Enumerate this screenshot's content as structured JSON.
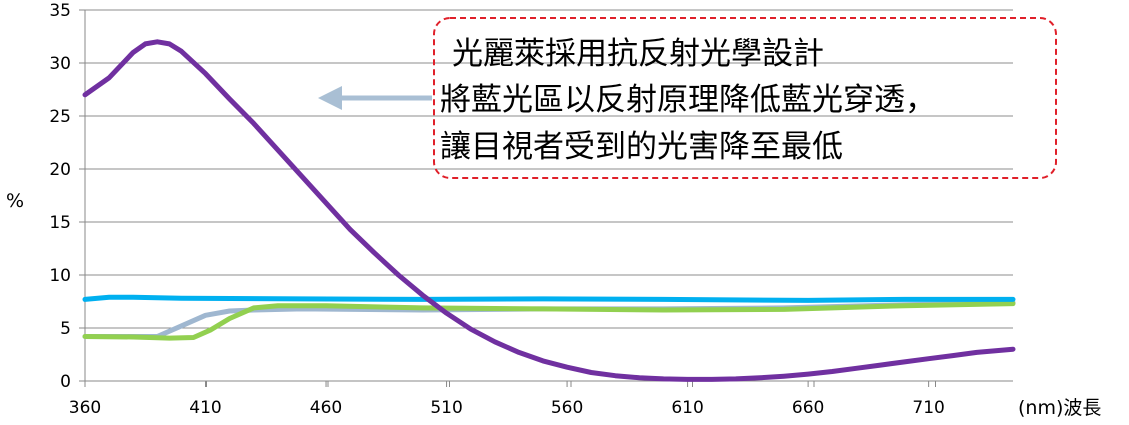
{
  "chart_data": {
    "type": "line",
    "title": "",
    "xlabel": "(nm)波長",
    "ylabel": "%",
    "xlim": [
      360,
      745
    ],
    "ylim": [
      0,
      35
    ],
    "x_ticks": [
      360,
      410,
      460,
      510,
      560,
      610,
      660,
      710
    ],
    "y_ticks": [
      0,
      5,
      10,
      15,
      20,
      25,
      30,
      35
    ],
    "grid": true,
    "legend": "none",
    "series": [
      {
        "color": "#7030a0",
        "points": [
          [
            360,
            27
          ],
          [
            370,
            28.6
          ],
          [
            380,
            31
          ],
          [
            385,
            31.8
          ],
          [
            390,
            32
          ],
          [
            395,
            31.8
          ],
          [
            400,
            31.1
          ],
          [
            410,
            29
          ],
          [
            420,
            26.6
          ],
          [
            430,
            24.3
          ],
          [
            440,
            21.8
          ],
          [
            450,
            19.3
          ],
          [
            460,
            16.8
          ],
          [
            470,
            14.3
          ],
          [
            480,
            12.1
          ],
          [
            490,
            10
          ],
          [
            500,
            8.1
          ],
          [
            510,
            6.4
          ],
          [
            520,
            4.9
          ],
          [
            530,
            3.7
          ],
          [
            540,
            2.7
          ],
          [
            550,
            1.9
          ],
          [
            560,
            1.3
          ],
          [
            570,
            0.8
          ],
          [
            580,
            0.5
          ],
          [
            590,
            0.3
          ],
          [
            600,
            0.2
          ],
          [
            610,
            0.15
          ],
          [
            620,
            0.15
          ],
          [
            630,
            0.2
          ],
          [
            640,
            0.3
          ],
          [
            650,
            0.45
          ],
          [
            660,
            0.65
          ],
          [
            670,
            0.9
          ],
          [
            680,
            1.2
          ],
          [
            690,
            1.5
          ],
          [
            700,
            1.8
          ],
          [
            710,
            2.1
          ],
          [
            720,
            2.4
          ],
          [
            730,
            2.7
          ],
          [
            745,
            3
          ]
        ]
      },
      {
        "color": "#00b0f0",
        "points": [
          [
            360,
            7.7
          ],
          [
            370,
            7.9
          ],
          [
            380,
            7.9
          ],
          [
            400,
            7.8
          ],
          [
            450,
            7.75
          ],
          [
            500,
            7.7
          ],
          [
            550,
            7.75
          ],
          [
            600,
            7.7
          ],
          [
            660,
            7.6
          ],
          [
            700,
            7.7
          ],
          [
            745,
            7.7
          ]
        ]
      },
      {
        "color": "#9fb7d0",
        "points": [
          [
            360,
            4.2
          ],
          [
            390,
            4.2
          ],
          [
            400,
            5.2
          ],
          [
            410,
            6.2
          ],
          [
            420,
            6.6
          ],
          [
            430,
            6.7
          ],
          [
            450,
            6.8
          ],
          [
            500,
            6.7
          ],
          [
            550,
            6.8
          ],
          [
            600,
            6.8
          ],
          [
            650,
            6.9
          ],
          [
            700,
            7.2
          ],
          [
            745,
            7.4
          ]
        ]
      },
      {
        "color": "#92d050",
        "points": [
          [
            360,
            4.2
          ],
          [
            380,
            4.15
          ],
          [
            395,
            4.05
          ],
          [
            405,
            4.1
          ],
          [
            412,
            4.8
          ],
          [
            420,
            5.9
          ],
          [
            430,
            6.9
          ],
          [
            440,
            7.1
          ],
          [
            460,
            7.1
          ],
          [
            500,
            6.9
          ],
          [
            550,
            6.8
          ],
          [
            600,
            6.7
          ],
          [
            650,
            6.75
          ],
          [
            700,
            7.1
          ],
          [
            745,
            7.3
          ]
        ]
      }
    ],
    "annotations": [
      {
        "lines": [
          "光麗萊採用抗反射光學設計",
          "將藍光區以反射原理降低藍光穿透，",
          "讓目視者受到的光害降至最低"
        ],
        "border_color": "#e0202a",
        "arrow_color": "#a9bfd4"
      }
    ]
  }
}
